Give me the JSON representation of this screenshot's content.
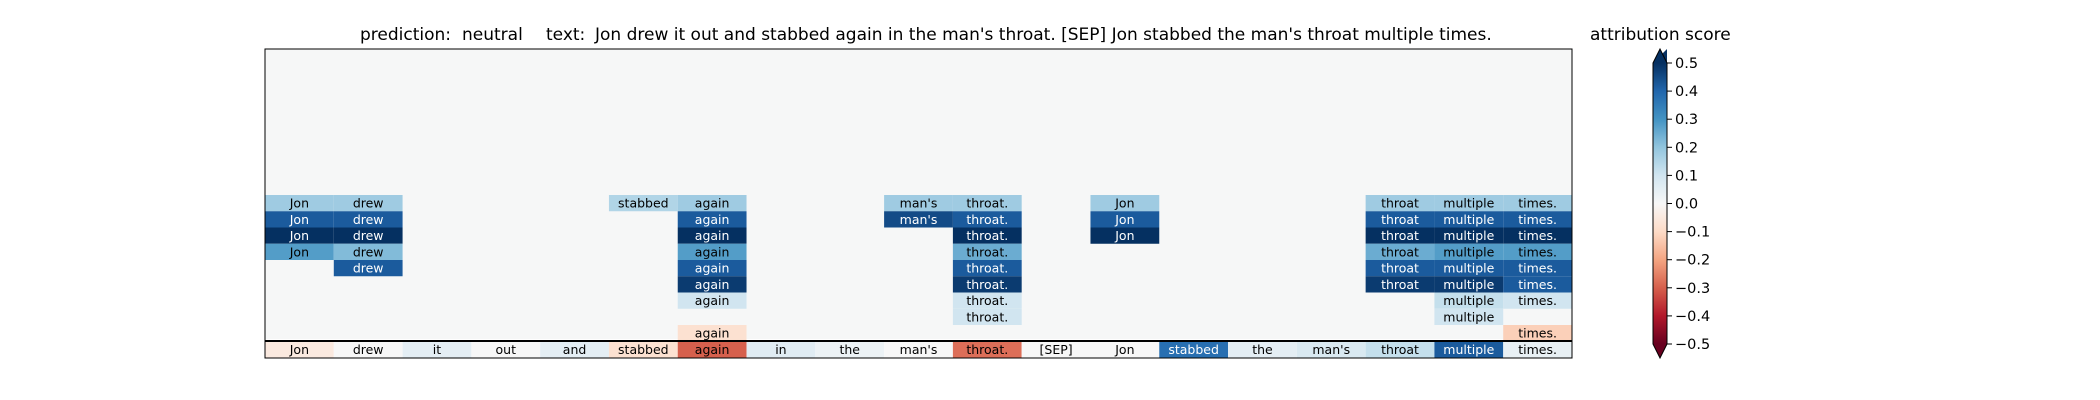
{
  "chart_data": {
    "type": "heatmap",
    "title_prefix": "prediction:",
    "prediction": "neutral",
    "text_prefix": "text:",
    "text": "Jon drew it out and stabbed again in the man's throat. [SEP] Jon stabbed the man's throat multiple times.",
    "tokens": [
      "Jon",
      "drew",
      "it",
      "out",
      "and",
      "stabbed",
      "again",
      "in",
      "the",
      "man's",
      "throat.",
      "[SEP]",
      "Jon",
      "stabbed",
      "the",
      "man's",
      "throat",
      "multiple",
      "times."
    ],
    "token_scores": [
      -0.05,
      0.0,
      0.05,
      0.0,
      0.05,
      -0.08,
      -0.3,
      0.06,
      0.03,
      0.0,
      -0.28,
      0.0,
      0.0,
      0.38,
      0.05,
      0.08,
      0.12,
      0.42,
      0.04
    ],
    "layers": [
      [
        0.18,
        0.18,
        null,
        null,
        null,
        0.15,
        0.18,
        null,
        null,
        0.18,
        0.18,
        null,
        0.18,
        null,
        null,
        null,
        0.18,
        0.18,
        0.18
      ],
      [
        0.42,
        0.42,
        null,
        null,
        null,
        null,
        0.42,
        null,
        null,
        0.45,
        0.42,
        null,
        0.42,
        null,
        null,
        null,
        0.42,
        0.42,
        0.42
      ],
      [
        0.5,
        0.5,
        null,
        null,
        null,
        null,
        0.5,
        null,
        null,
        null,
        0.5,
        null,
        0.5,
        null,
        null,
        null,
        0.5,
        0.5,
        0.5
      ],
      [
        0.28,
        0.22,
        null,
        null,
        null,
        null,
        0.28,
        null,
        null,
        null,
        0.25,
        null,
        null,
        null,
        null,
        null,
        0.25,
        0.28,
        0.28
      ],
      [
        null,
        0.42,
        null,
        null,
        null,
        null,
        0.42,
        null,
        null,
        null,
        0.42,
        null,
        null,
        null,
        null,
        null,
        0.42,
        0.42,
        0.42
      ],
      [
        null,
        null,
        null,
        null,
        null,
        null,
        0.48,
        null,
        null,
        null,
        0.48,
        null,
        null,
        null,
        null,
        null,
        0.48,
        0.48,
        0.42
      ],
      [
        null,
        null,
        null,
        null,
        null,
        null,
        0.1,
        null,
        null,
        null,
        0.1,
        null,
        null,
        null,
        null,
        null,
        null,
        0.12,
        0.1
      ],
      [
        null,
        null,
        null,
        null,
        null,
        null,
        null,
        null,
        null,
        null,
        0.1,
        null,
        null,
        null,
        null,
        null,
        null,
        0.1,
        null
      ],
      [
        null,
        null,
        null,
        null,
        null,
        null,
        -0.08,
        null,
        null,
        null,
        null,
        null,
        null,
        null,
        null,
        null,
        null,
        null,
        -0.12
      ]
    ],
    "colorbar": {
      "label": "attribution score",
      "ticks": [
        "-0.5",
        "-0.4",
        "-0.3",
        "-0.2",
        "-0.1",
        "0.0",
        "0.1",
        "0.2",
        "0.3",
        "0.4",
        "0.5"
      ],
      "range": [
        -0.5,
        0.5
      ],
      "colormap": "RdBu",
      "extend": "both"
    }
  }
}
